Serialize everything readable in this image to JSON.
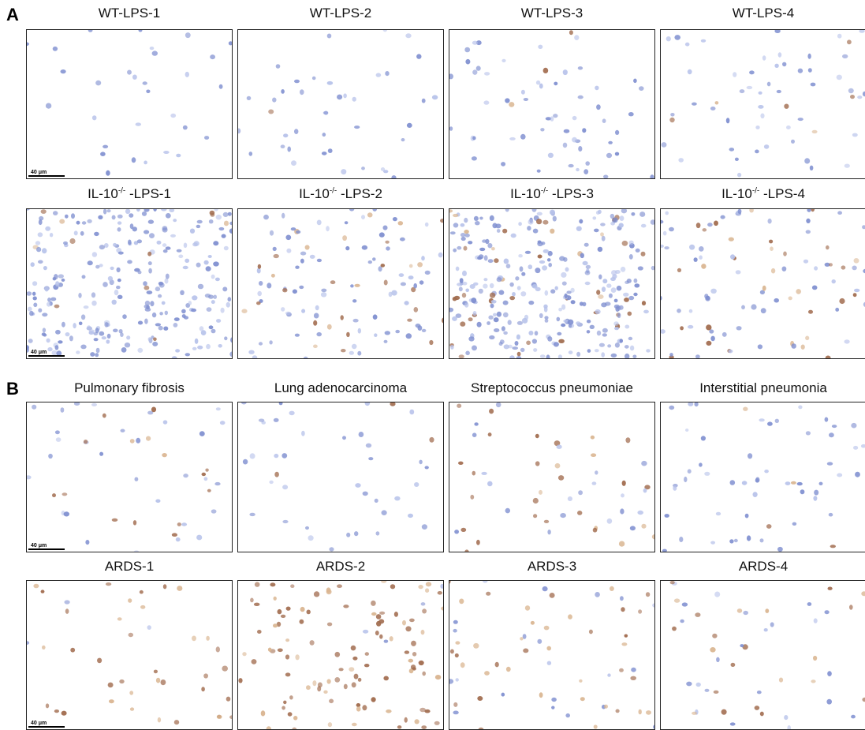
{
  "panel_a": {
    "label": "A",
    "rows": [
      [
        {
          "title": "WT-LPS-1"
        },
        {
          "title": "WT-LPS-2"
        },
        {
          "title": "WT-LPS-3"
        },
        {
          "title": "WT-LPS-4"
        }
      ],
      [
        {
          "title": "IL-10",
          "title_sup": "-/-",
          "title_rest": " -LPS-1"
        },
        {
          "title": "IL-10",
          "title_sup": "-/-",
          "title_rest": " -LPS-2"
        },
        {
          "title": "IL-10",
          "title_sup": "-/-",
          "title_rest": " -LPS-3"
        },
        {
          "title": "IL-10",
          "title_sup": "-/-",
          "title_rest": " -LPS-4"
        }
      ]
    ]
  },
  "panel_b": {
    "label": "B",
    "rows": [
      [
        {
          "title": "Pulmonary fibrosis"
        },
        {
          "title": "Lung adenocarcinoma"
        },
        {
          "title": "Streptococcus pneumoniae"
        },
        {
          "title": "Interstitial pneumonia"
        }
      ],
      [
        {
          "title": "ARDS-1"
        },
        {
          "title": "ARDS-2"
        },
        {
          "title": "ARDS-3"
        },
        {
          "title": "ARDS-4"
        }
      ]
    ]
  },
  "scale_bar": "40 μm"
}
